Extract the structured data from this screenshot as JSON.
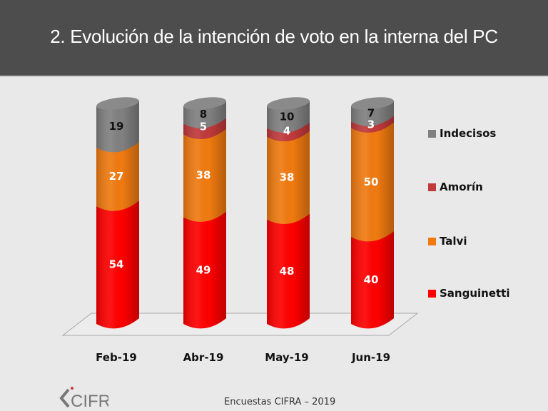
{
  "header": {
    "title": "2. Evolución de la intención de voto en la interna del PC"
  },
  "chart_data": {
    "type": "bar",
    "stacked": true,
    "style": "3d-cylinder",
    "title": "2. Evolución de la intención de voto en la interna del PC",
    "xlabel": "",
    "ylabel": "",
    "categories": [
      "Feb-19",
      "Abr-19",
      "May-19",
      "Jun-19"
    ],
    "series": [
      {
        "name": "Sanguinetti",
        "color": "#ff0000",
        "label_color": "#ffffff",
        "values": [
          54,
          49,
          48,
          40
        ]
      },
      {
        "name": "Talvi",
        "color": "#f07a10",
        "label_color": "#ffffff",
        "values": [
          27,
          38,
          38,
          50
        ]
      },
      {
        "name": "Amorín",
        "color": "#c0393b",
        "label_color": "#ffffff",
        "values": [
          null,
          5,
          4,
          3
        ]
      },
      {
        "name": "Indecisos",
        "color": "#808080",
        "label_color": "#111111",
        "values": [
          19,
          8,
          10,
          7
        ]
      }
    ],
    "ylim": [
      0,
      100
    ],
    "grid": false,
    "legend_position": "right",
    "legend_order": [
      "Indecisos",
      "Amorín",
      "Talvi",
      "Sanguinetti"
    ]
  },
  "footer": {
    "source": "Encuestas CIFRA – 2019",
    "logo_text": "CIFRA"
  }
}
